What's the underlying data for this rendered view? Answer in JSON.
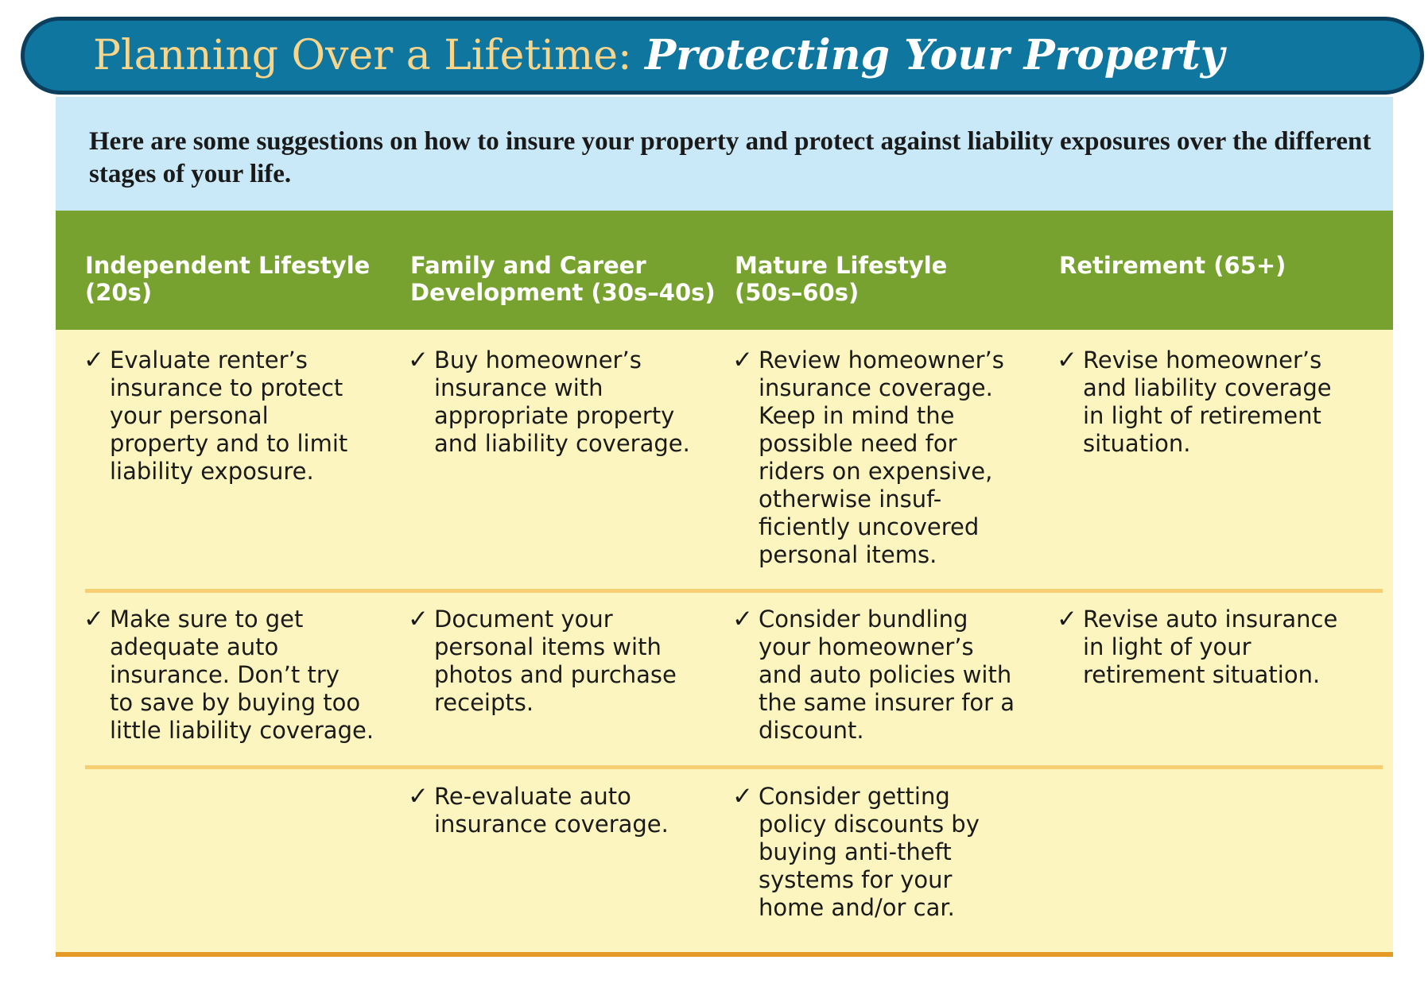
{
  "header": {
    "title_main": "Planning Over a Lifetime: ",
    "title_emphasis": "Protecting Your Property"
  },
  "intro": "Here are some suggestions on how to insure your property and protect against liability exposures over the different stages of your life.",
  "columns": [
    "Independent Lifestyle\n(20s)",
    "Family and Career\nDevelopment (30s–40s)",
    "Mature Lifestyle\n(50s–60s)",
    "Retirement (65+)"
  ],
  "check_glyph": "✓",
  "rows": [
    [
      "Evaluate renter’s\ninsurance to protect\nyour personal\nproperty and to limit\nliability exposure.",
      "Buy homeowner’s\ninsurance with\nappropriate property\nand liability coverage.",
      "Review homeowner’s\ninsurance coverage.\nKeep in mind the\npossible need for\nriders on expensive,\notherwise insuf-\nficiently uncovered\npersonal items.",
      "Revise homeowner’s\nand liability coverage\nin light of retirement\nsituation."
    ],
    [
      "Make sure to get\nadequate auto\ninsurance. Don’t try\nto save by buying too\nlittle liability coverage.",
      "Document your\npersonal items with\nphotos and purchase\nreceipts.",
      "Consider bundling\nyour homeowner’s\nand auto policies with\nthe same insurer for a\ndiscount.",
      "Revise auto insurance\nin light of your\nretirement situation."
    ],
    [
      "",
      "Re-evaluate auto\ninsurance coverage.",
      "Consider getting\npolicy discounts by\nbuying anti-theft\nsystems for your\nhome and/or car.",
      ""
    ]
  ]
}
